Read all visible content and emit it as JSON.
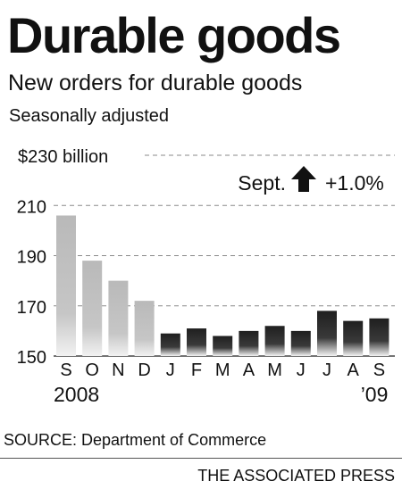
{
  "header": {
    "title": "Durable goods",
    "subtitle": "New orders for durable goods",
    "note": "Seasonally adjusted"
  },
  "annotation": {
    "label": "Sept.",
    "arrow_icon": "up-arrow-icon",
    "change": "+1.0%"
  },
  "chart_data": {
    "type": "bar",
    "categories": [
      "S",
      "O",
      "N",
      "D",
      "J",
      "F",
      "M",
      "A",
      "M",
      "J",
      "J",
      "A",
      "S"
    ],
    "values": [
      206,
      188,
      180,
      172,
      159,
      161,
      158,
      160,
      162,
      160,
      168,
      164,
      165
    ],
    "ylim": [
      150,
      230
    ],
    "y_ticks": [
      {
        "value": 230,
        "label": "$230 billion"
      },
      {
        "value": 210,
        "label": "210"
      },
      {
        "value": 190,
        "label": "190"
      },
      {
        "value": 170,
        "label": "170"
      },
      {
        "value": 150,
        "label": "150"
      }
    ],
    "year_labels": [
      {
        "label": "2008",
        "under_index": 0
      },
      {
        "label": "’09",
        "under_index": 12
      }
    ],
    "grid": true,
    "colors": {
      "2008": "#b9b9b9",
      "2009": "#2b2b2b",
      "grid": "#8a8a8a"
    }
  },
  "footer": {
    "source": "SOURCE: Department of Commerce",
    "credit": "THE ASSOCIATED PRESS"
  }
}
